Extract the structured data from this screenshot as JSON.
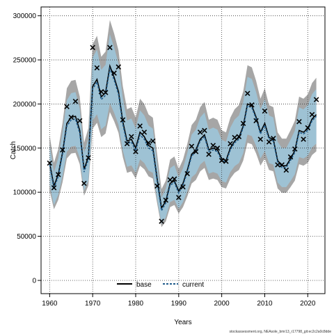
{
  "chart_data": {
    "type": "line",
    "title": "",
    "xlabel": "Years",
    "ylabel": "Catch",
    "xlim": [
      1958,
      2024
    ],
    "ylim": [
      -15000,
      310000
    ],
    "x_ticks": [
      1960,
      1970,
      1980,
      1990,
      2000,
      2010,
      2020
    ],
    "y_ticks": [
      0,
      50000,
      100000,
      150000,
      200000,
      250000,
      300000
    ],
    "grid": true,
    "legend_position": "bottom",
    "x": [
      1960,
      1961,
      1962,
      1963,
      1964,
      1965,
      1966,
      1967,
      1968,
      1969,
      1970,
      1971,
      1972,
      1973,
      1974,
      1975,
      1976,
      1977,
      1978,
      1979,
      1980,
      1981,
      1982,
      1983,
      1984,
      1985,
      1986,
      1987,
      1988,
      1989,
      1990,
      1991,
      1992,
      1993,
      1994,
      1995,
      1996,
      1997,
      1998,
      1999,
      2000,
      2001,
      2002,
      2003,
      2004,
      2005,
      2006,
      2007,
      2008,
      2009,
      2010,
      2011,
      2012,
      2013,
      2014,
      2015,
      2016,
      2017,
      2018,
      2019,
      2020,
      2021,
      2022
    ],
    "observed": {
      "name": "observed",
      "marker": "x",
      "values": [
        133000,
        105000,
        120000,
        148000,
        197000,
        185000,
        203000,
        181000,
        110000,
        139000,
        264000,
        241000,
        214000,
        213000,
        264000,
        235000,
        242000,
        182000,
        155000,
        163000,
        146000,
        175000,
        168000,
        156000,
        158000,
        107000,
        67000,
        91000,
        114000,
        115000,
        94000,
        106000,
        121000,
        152000,
        146000,
        168000,
        170000,
        143000,
        153000,
        150000,
        136000,
        135000,
        155000,
        162000,
        163000,
        178000,
        212000,
        199000,
        181000,
        160000,
        192000,
        157000,
        161000,
        131000,
        131000,
        125000,
        140000,
        149000,
        180000,
        160000,
        173000,
        188000,
        205000
      ]
    },
    "series": [
      {
        "name": "base",
        "color": "#000000",
        "line": "solid",
        "band_color": "#a6a6a6",
        "values": [
          133000,
          107000,
          120000,
          145000,
          178000,
          185000,
          186000,
          170000,
          126000,
          140000,
          220000,
          228000,
          208000,
          213000,
          243000,
          230000,
          214000,
          180000,
          158000,
          160000,
          150000,
          168000,
          163000,
          153000,
          150000,
          115000,
          82000,
          90000,
          110000,
          113000,
          101000,
          110000,
          125000,
          143000,
          148000,
          160000,
          165000,
          148000,
          150000,
          148000,
          138000,
          136000,
          150000,
          158000,
          162000,
          175000,
          200000,
          198000,
          185000,
          168000,
          178000,
          162000,
          160000,
          136000,
          130000,
          130000,
          138000,
          147000,
          170000,
          168000,
          172000,
          183000,
          188000
        ]
      },
      {
        "name": "current",
        "color": "#1f5b8a",
        "line": "dashed",
        "band_color": "#9dc3d6",
        "values": [
          131000,
          104000,
          118000,
          143000,
          175000,
          182000,
          183000,
          167000,
          123000,
          137000,
          217000,
          225000,
          205000,
          210000,
          240000,
          227000,
          211000,
          177000,
          155000,
          157000,
          147000,
          165000,
          160000,
          150000,
          147000,
          112000,
          79000,
          88000,
          108000,
          111000,
          99000,
          108000,
          123000,
          141000,
          146000,
          158000,
          163000,
          146000,
          148000,
          146000,
          136000,
          134000,
          148000,
          156000,
          160000,
          173000,
          198000,
          196000,
          183000,
          166000,
          176000,
          160000,
          158000,
          134000,
          128000,
          128000,
          136000,
          145000,
          168000,
          166000,
          170000,
          181000,
          186000
        ]
      }
    ],
    "legend": [
      "base",
      "current"
    ],
    "footer": "stockassessment.org, NEAsole_bmr13_r17798_git:ec2c2a0c8dde"
  }
}
